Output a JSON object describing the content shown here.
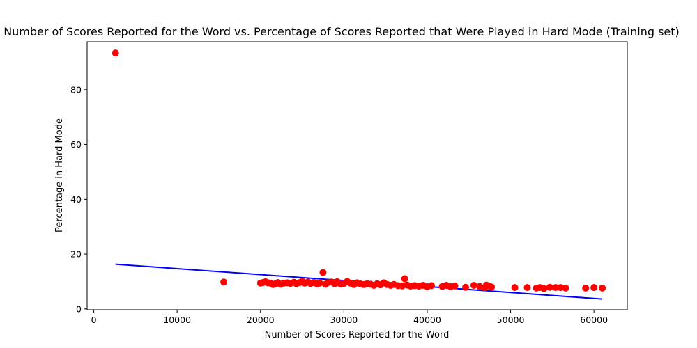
{
  "chart_data": {
    "type": "scatter",
    "title": "Number of Scores Reported for the Word vs. Percentage of Scores Reported that Were Played in Hard Mode (Training set)",
    "xlabel": "Number of Scores Reported for the Word",
    "ylabel": "Percentage in Hard Mode",
    "xlim": [
      -800,
      64000
    ],
    "ylim": [
      -0.3,
      97.5
    ],
    "x_ticks": [
      0,
      10000,
      20000,
      30000,
      40000,
      50000,
      60000
    ],
    "y_ticks": [
      0,
      20,
      40,
      60,
      80
    ],
    "grid": false,
    "legend": "none",
    "colors": {
      "points": "#ff0000",
      "fit_line": "#0000ff"
    },
    "series": [
      {
        "type": "scatter",
        "points": [
          [
            2600,
            93.4
          ],
          [
            15600,
            9.8
          ],
          [
            20000,
            9.4
          ],
          [
            20300,
            9.6
          ],
          [
            20600,
            9.9
          ],
          [
            20900,
            9.5
          ],
          [
            21200,
            9.4
          ],
          [
            21500,
            8.9
          ],
          [
            21800,
            9.2
          ],
          [
            22100,
            9.6
          ],
          [
            22400,
            9.0
          ],
          [
            22800,
            9.4
          ],
          [
            23200,
            9.5
          ],
          [
            23600,
            9.3
          ],
          [
            24000,
            9.7
          ],
          [
            24300,
            9.2
          ],
          [
            24700,
            9.6
          ],
          [
            25000,
            10.1
          ],
          [
            25300,
            9.4
          ],
          [
            25700,
            9.8
          ],
          [
            26000,
            9.3
          ],
          [
            26400,
            9.6
          ],
          [
            26800,
            9.1
          ],
          [
            27100,
            9.4
          ],
          [
            27500,
            13.3
          ],
          [
            27800,
            9.0
          ],
          [
            28100,
            9.6
          ],
          [
            28500,
            9.8
          ],
          [
            28900,
            9.2
          ],
          [
            29200,
            9.9
          ],
          [
            29600,
            9.1
          ],
          [
            30000,
            9.3
          ],
          [
            30400,
            10.0
          ],
          [
            30800,
            9.4
          ],
          [
            31200,
            8.9
          ],
          [
            31600,
            9.5
          ],
          [
            32000,
            9.1
          ],
          [
            32400,
            8.9
          ],
          [
            32800,
            9.2
          ],
          [
            33200,
            9.0
          ],
          [
            33600,
            8.6
          ],
          [
            34000,
            9.2
          ],
          [
            34400,
            8.8
          ],
          [
            34800,
            9.5
          ],
          [
            35200,
            8.9
          ],
          [
            35600,
            8.6
          ],
          [
            36000,
            8.9
          ],
          [
            36500,
            8.5
          ],
          [
            37000,
            8.4
          ],
          [
            37300,
            11.0
          ],
          [
            37600,
            8.7
          ],
          [
            38000,
            8.3
          ],
          [
            38500,
            8.5
          ],
          [
            39000,
            8.3
          ],
          [
            39500,
            8.6
          ],
          [
            40000,
            8.1
          ],
          [
            40500,
            8.5
          ],
          [
            41800,
            8.2
          ],
          [
            42300,
            8.6
          ],
          [
            42800,
            8.1
          ],
          [
            43300,
            8.4
          ],
          [
            44600,
            7.9
          ],
          [
            45600,
            8.6
          ],
          [
            46300,
            8.2
          ],
          [
            46900,
            7.8
          ],
          [
            47100,
            8.7
          ],
          [
            47400,
            8.4
          ],
          [
            47700,
            8.0
          ],
          [
            50500,
            7.8
          ],
          [
            52000,
            7.8
          ],
          [
            53100,
            7.6
          ],
          [
            53500,
            7.8
          ],
          [
            54000,
            7.4
          ],
          [
            54700,
            7.9
          ],
          [
            55400,
            7.8
          ],
          [
            56000,
            7.8
          ],
          [
            56600,
            7.6
          ],
          [
            59000,
            7.6
          ],
          [
            60000,
            7.8
          ],
          [
            61000,
            7.6
          ]
        ]
      },
      {
        "type": "line",
        "points": [
          [
            2600,
            16.3
          ],
          [
            61000,
            3.6
          ]
        ]
      }
    ]
  }
}
